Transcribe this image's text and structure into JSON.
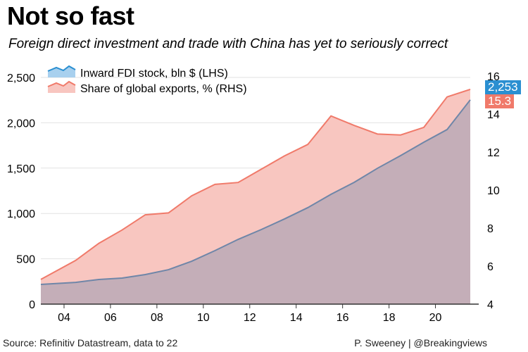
{
  "title": "Not so fast",
  "subtitle": "Foreign direct investment and trade with China has yet to seriously correct",
  "source": "Source: Refinitiv Datastream, data to 22",
  "credit": "P. Sweeney | @Breakingviews",
  "colors": {
    "fdi_line": "#6f86a8",
    "fdi_fill": "#c4aeb8",
    "fdi_legend": "#2a8fd1",
    "exports_line": "#f07a6a",
    "exports_fill": "#f8c6c0"
  },
  "chart_data": {
    "type": "area",
    "x": [
      2003,
      2004.5,
      2005.5,
      2006.5,
      2007.5,
      2008.5,
      2009.5,
      2010.5,
      2011.5,
      2012.5,
      2013.5,
      2014.5,
      2015.5,
      2016.5,
      2017.5,
      2018.5,
      2019.5,
      2020.5,
      2021.5
    ],
    "xticks": [
      2004,
      2006,
      2008,
      2010,
      2012,
      2014,
      2016,
      2018,
      2020
    ],
    "xtick_labels": [
      "04",
      "06",
      "08",
      "10",
      "12",
      "14",
      "16",
      "18",
      "20"
    ],
    "xlim": [
      2003,
      2021.5
    ],
    "y_left": {
      "lim": [
        0,
        2500
      ],
      "ticks": [
        0,
        500,
        1000,
        1500,
        2000,
        2500
      ],
      "tick_labels": [
        "0",
        "500",
        "1,000",
        "1,500",
        "2,000",
        "2,500"
      ]
    },
    "y_right": {
      "lim": [
        4,
        16
      ],
      "ticks": [
        4,
        6,
        8,
        10,
        12,
        14,
        16
      ],
      "tick_labels": [
        "4",
        "6",
        "8",
        "10",
        "12",
        "14",
        "16"
      ]
    },
    "grid": true,
    "legend": "top-left",
    "series": [
      {
        "name": "Inward FDI stock, bln $ (LHS)",
        "axis": "left",
        "values": [
          217,
          240,
          272,
          287,
          326,
          380,
          473,
          590,
          714,
          823,
          940,
          1064,
          1211,
          1343,
          1498,
          1638,
          1786,
          1925,
          2253
        ],
        "end_label": "2,253"
      },
      {
        "name": "Share of global exports, % (RHS)",
        "axis": "right",
        "values": [
          5.3,
          6.3,
          7.2,
          7.9,
          8.7,
          8.8,
          9.7,
          10.3,
          10.4,
          11.1,
          11.8,
          12.4,
          13.9,
          13.4,
          12.95,
          12.9,
          13.3,
          14.9,
          15.3
        ],
        "end_label": "15.3"
      }
    ]
  }
}
